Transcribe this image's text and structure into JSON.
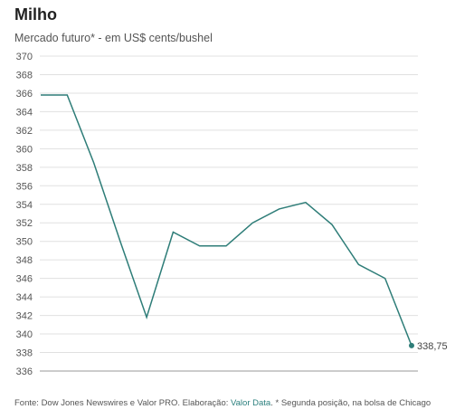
{
  "title": "Milho",
  "subtitle": "Mercado futuro* - em US$ cents/bushel",
  "footer": {
    "prefix": "Fonte: Dow Jones Newswires e Valor PRO. Elaboração: ",
    "link": "Valor Data",
    "suffix": ". * Segunda posição, na bolsa de Chicago"
  },
  "colors": {
    "line": "#2e7d78",
    "grid": "#e0e0e0",
    "baseline": "#999999"
  },
  "chart_data": {
    "type": "line",
    "title": "Milho",
    "subtitle": "Mercado futuro* - em US$ cents/bushel",
    "xlabel": "",
    "ylabel": "",
    "ylim": [
      336,
      370
    ],
    "yticks": [
      336,
      338,
      340,
      342,
      344,
      346,
      348,
      350,
      352,
      354,
      356,
      358,
      360,
      362,
      364,
      366,
      368,
      370
    ],
    "grid": true,
    "series": [
      {
        "values": [
          365.8,
          365.8,
          358.5,
          350.0,
          341.8,
          351.0,
          349.5,
          349.5,
          352.0,
          353.5,
          354.2,
          351.8,
          347.5,
          346.0,
          338.75
        ]
      }
    ],
    "end_label": "338,75"
  }
}
